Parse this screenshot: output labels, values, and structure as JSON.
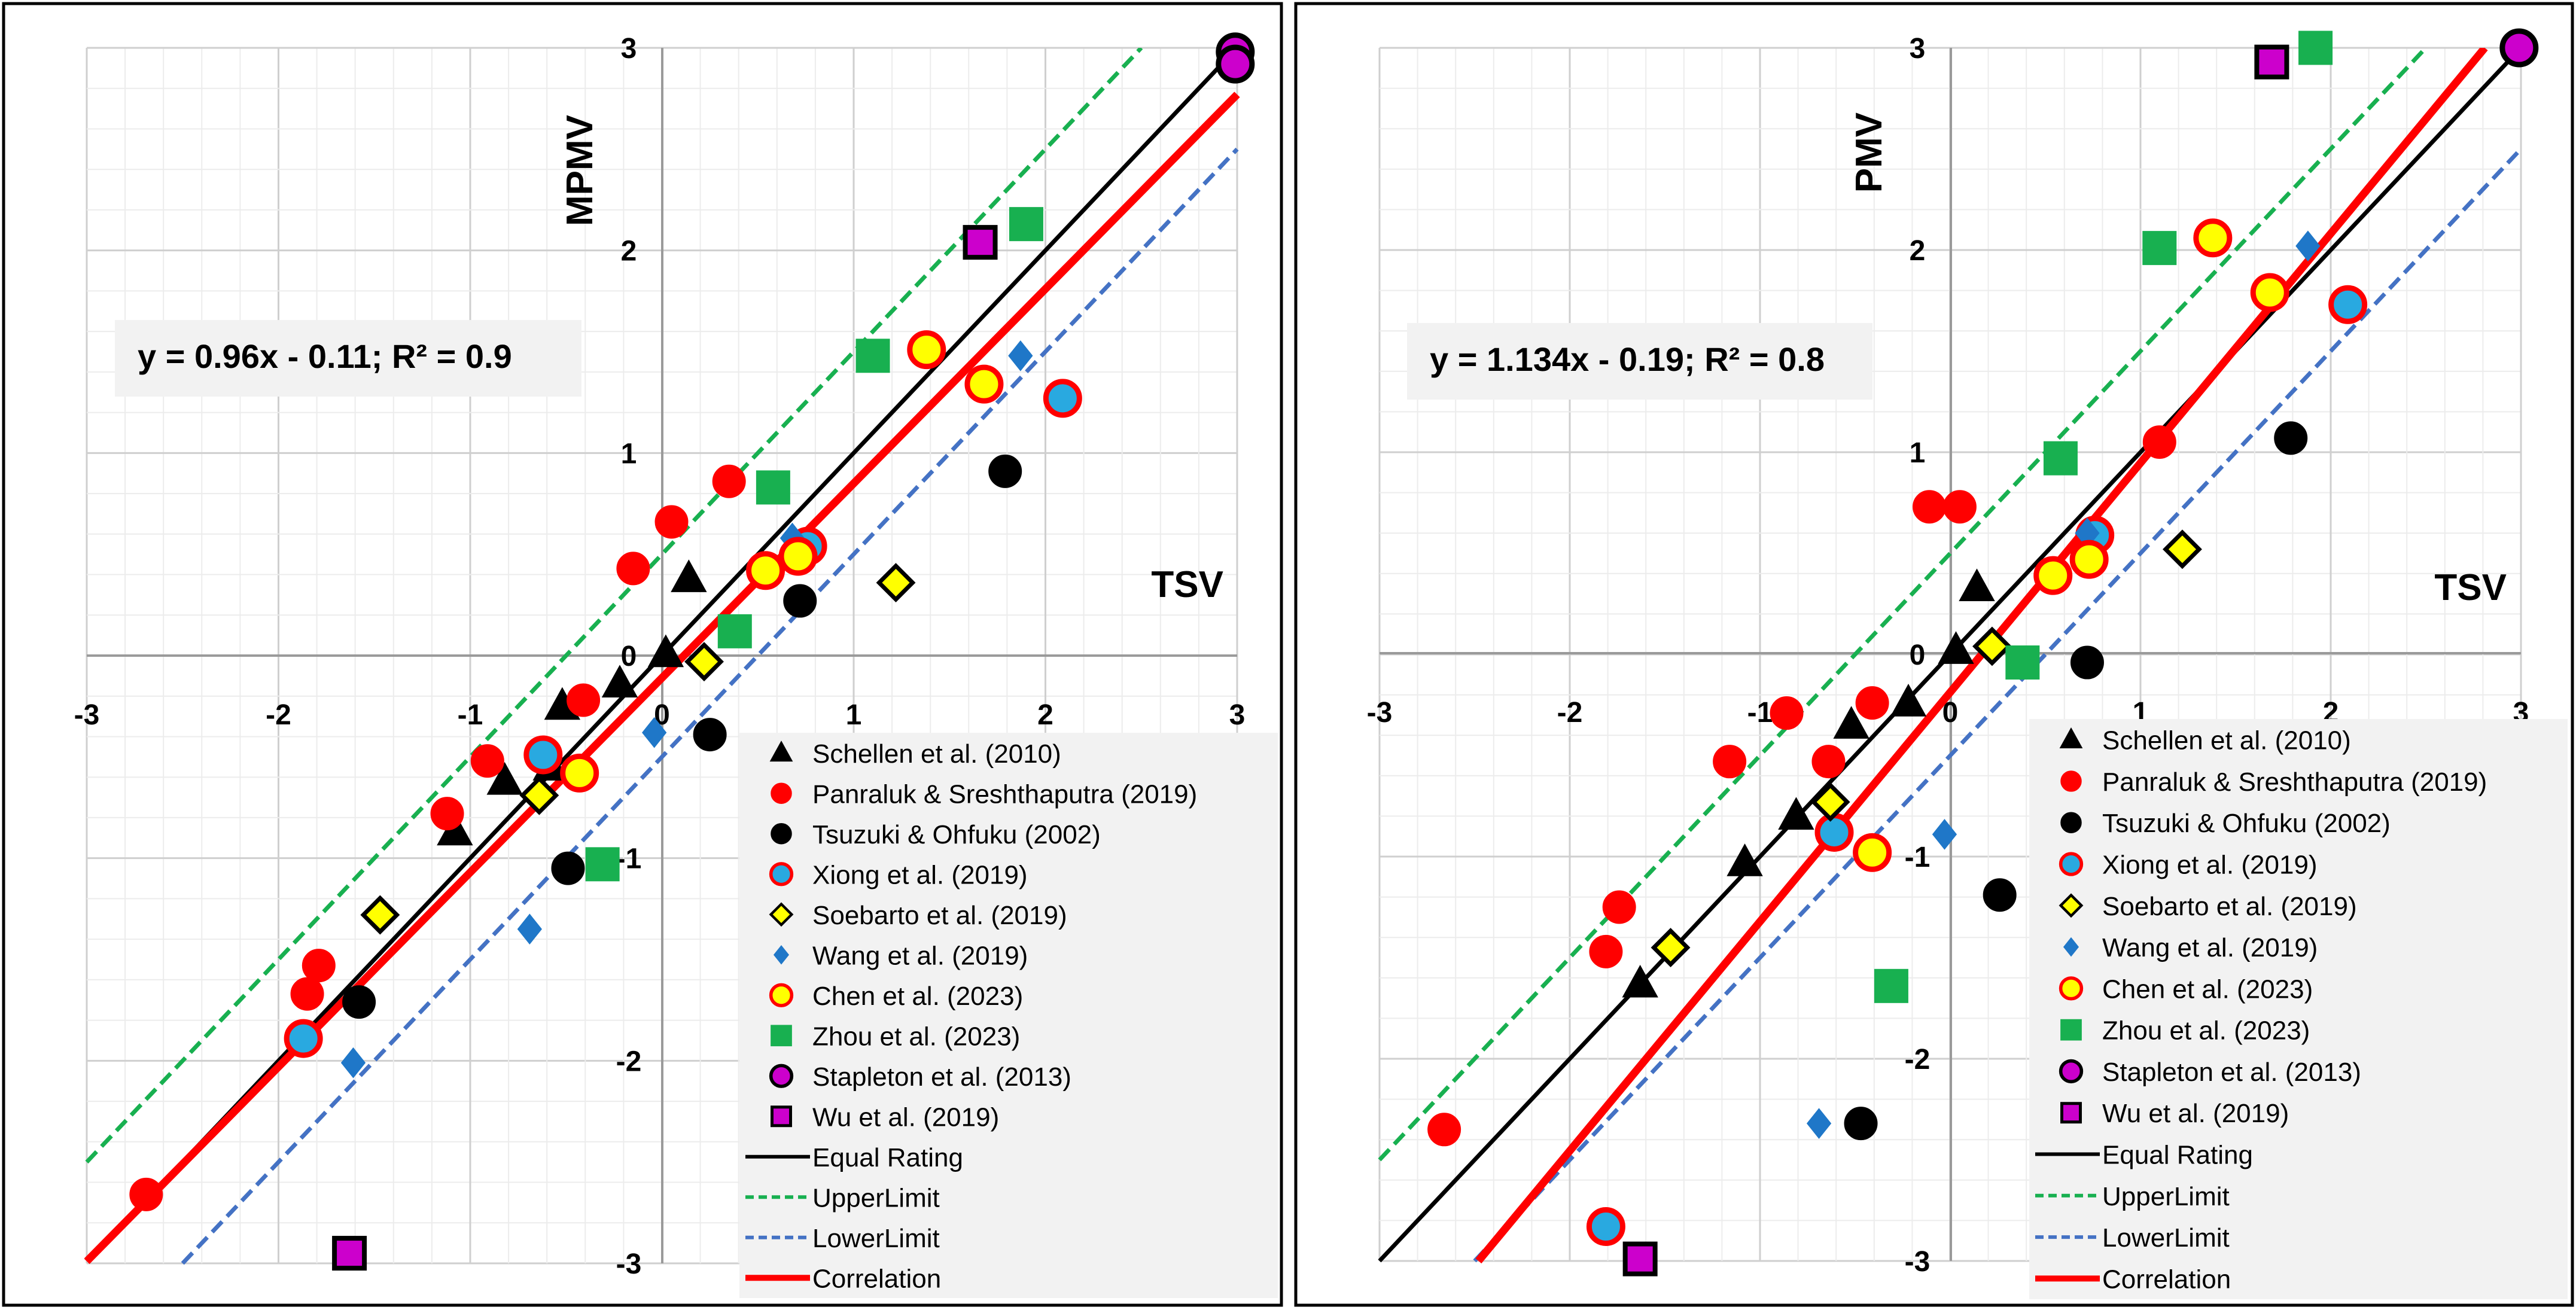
{
  "chart_data": [
    {
      "type": "scatter",
      "title": "",
      "xlabel": "TSV",
      "ylabel": "MPMV",
      "xlim": [
        -3,
        3
      ],
      "ylim": [
        -3,
        3
      ],
      "grid": true,
      "equation": "y = 0.96x - 0.11; R² = 0.9",
      "ticks": {
        "x": [
          "-3",
          "-2",
          "-1",
          "0",
          "1",
          "2",
          "3"
        ],
        "y": [
          "-3",
          "-2",
          "-1",
          "0",
          "1",
          "2",
          "3"
        ]
      },
      "series": [
        {
          "name": "Schellen et al. (2010)",
          "marker": "triangle",
          "fill": "#000000",
          "stroke": "#000000",
          "points": [
            [
              0.14,
              0.38
            ],
            [
              0.02,
              0.01
            ],
            [
              -0.22,
              -0.14
            ],
            [
              -0.52,
              -0.25
            ],
            [
              -0.58,
              -0.55
            ],
            [
              -0.82,
              -0.62
            ],
            [
              -1.08,
              -0.87
            ]
          ]
        },
        {
          "name": "Panraluk & Sreshthaputra (2019)",
          "marker": "circle",
          "fill": "#ff0000",
          "stroke": "#ff0000",
          "points": [
            [
              0.35,
              0.86
            ],
            [
              0.05,
              0.66
            ],
            [
              -0.15,
              0.43
            ],
            [
              -0.41,
              -0.22
            ],
            [
              -0.91,
              -0.52
            ],
            [
              -1.12,
              -0.78
            ],
            [
              -1.79,
              -1.53
            ],
            [
              -1.85,
              -1.67
            ],
            [
              -2.69,
              -2.66
            ]
          ]
        },
        {
          "name": "Tsuzuki & Ohfuku (2002)",
          "marker": "circle",
          "fill": "#000000",
          "stroke": "#000000",
          "points": [
            [
              1.79,
              0.91
            ],
            [
              0.72,
              0.27
            ],
            [
              0.25,
              -0.39
            ],
            [
              -0.49,
              -1.05
            ],
            [
              -1.58,
              -1.71
            ]
          ]
        },
        {
          "name": "Xiong et al. (2019)",
          "marker": "circle",
          "fill": "#29a9e0",
          "stroke": "#ff0000",
          "points": [
            [
              2.09,
              1.27
            ],
            [
              0.76,
              0.54
            ],
            [
              -0.62,
              -0.49
            ],
            [
              -1.87,
              -1.89
            ]
          ]
        },
        {
          "name": "Soebarto et al. (2019)",
          "marker": "diamond",
          "fill": "#ffff00",
          "stroke": "#000000",
          "points": [
            [
              1.22,
              0.36
            ],
            [
              0.22,
              -0.03
            ],
            [
              -0.64,
              -0.69
            ],
            [
              -1.47,
              -1.28
            ]
          ]
        },
        {
          "name": "Wang et al. (2019)",
          "marker": "diamond-small",
          "fill": "#1f77c8",
          "stroke": "#1f77c8",
          "points": [
            [
              1.87,
              1.48
            ],
            [
              0.68,
              0.58
            ],
            [
              -0.04,
              -0.38
            ],
            [
              -0.69,
              -1.35
            ],
            [
              -1.61,
              -2.01
            ]
          ]
        },
        {
          "name": "Chen et al. (2023)",
          "marker": "circle",
          "fill": "#ffff00",
          "stroke": "#ff0000",
          "points": [
            [
              1.38,
              1.51
            ],
            [
              1.68,
              1.34
            ],
            [
              0.71,
              0.49
            ],
            [
              0.54,
              0.42
            ],
            [
              -0.43,
              -0.58
            ]
          ]
        },
        {
          "name": "Zhou et al. (2023)",
          "marker": "square",
          "fill": "#18b050",
          "stroke": "#18b050",
          "points": [
            [
              1.9,
              2.13
            ],
            [
              1.1,
              1.48
            ],
            [
              0.58,
              0.83
            ],
            [
              0.38,
              0.12
            ],
            [
              -0.31,
              -1.03
            ]
          ]
        },
        {
          "name": "Stapleton et al. (2013)",
          "marker": "circle",
          "fill": "#cc00cc",
          "stroke": "#000000",
          "points": [
            [
              2.99,
              2.98
            ],
            [
              2.99,
              2.92
            ]
          ]
        },
        {
          "name": "Wu et al. (2019)",
          "marker": "square-outline",
          "fill": "#cc00cc",
          "stroke": "#000000",
          "points": [
            [
              1.66,
              2.04
            ],
            [
              -1.63,
              -2.95
            ]
          ]
        }
      ],
      "lines": [
        {
          "name": "Equal Rating",
          "color": "#000000",
          "dash": "solid",
          "points": [
            [
              -2.5,
              -2.5
            ],
            [
              3,
              3
            ]
          ]
        },
        {
          "name": "UpperLimit",
          "color": "#18b050",
          "dash": "dashed",
          "points": [
            [
              -3,
              -2.5
            ],
            [
              2.5,
              3
            ]
          ]
        },
        {
          "name": "LowerLimit",
          "color": "#4472c4",
          "dash": "dashed",
          "points": [
            [
              -2.5,
              -3
            ],
            [
              3,
              2.5
            ]
          ]
        },
        {
          "name": "Correlation",
          "color": "#ff0000",
          "dash": "solid",
          "points": [
            [
              -3,
              -2.99
            ],
            [
              3,
              2.77
            ]
          ]
        }
      ]
    },
    {
      "type": "scatter",
      "title": "",
      "xlabel": "TSV",
      "ylabel": "PMV",
      "xlim": [
        -3,
        3
      ],
      "ylim": [
        -3,
        3
      ],
      "grid": true,
      "equation": "y = 1.134x - 0.19; R² = 0.8",
      "ticks": {
        "x": [
          "-3",
          "-2",
          "-1",
          "0",
          "1",
          "2",
          "3"
        ],
        "y": [
          "-3",
          "-2",
          "-1",
          "0",
          "1",
          "2",
          "3"
        ]
      },
      "series": [
        {
          "name": "Schellen et al. (2010)",
          "marker": "triangle",
          "fill": "#000000",
          "stroke": "#000000",
          "points": [
            [
              0.14,
              0.33
            ],
            [
              0.03,
              0.02
            ],
            [
              -0.22,
              -0.24
            ],
            [
              -0.52,
              -0.35
            ],
            [
              -0.81,
              -0.8
            ],
            [
              -1.08,
              -1.03
            ],
            [
              -1.63,
              -1.63
            ]
          ]
        },
        {
          "name": "Panraluk & Sreshthaputra (2019)",
          "marker": "circle",
          "fill": "#ff0000",
          "stroke": "#ff0000",
          "points": [
            [
              1.1,
              1.05
            ],
            [
              0.05,
              0.73
            ],
            [
              -0.11,
              0.73
            ],
            [
              -0.41,
              -0.24
            ],
            [
              -0.64,
              -0.53
            ],
            [
              -0.86,
              -0.29
            ],
            [
              -1.16,
              -0.53
            ],
            [
              -1.74,
              -1.25
            ],
            [
              -1.81,
              -1.47
            ],
            [
              -2.66,
              -2.35
            ]
          ]
        },
        {
          "name": "Tsuzuki & Ohfuku (2002)",
          "marker": "circle",
          "fill": "#000000",
          "stroke": "#000000",
          "points": [
            [
              1.79,
              1.07
            ],
            [
              0.72,
              -0.04
            ],
            [
              0.26,
              -1.19
            ],
            [
              -0.47,
              -2.32
            ]
          ]
        },
        {
          "name": "Xiong et al. (2019)",
          "marker": "circle",
          "fill": "#29a9e0",
          "stroke": "#ff0000",
          "points": [
            [
              2.09,
              1.73
            ],
            [
              0.76,
              0.59
            ],
            [
              -0.61,
              -0.88
            ],
            [
              -1.81,
              -2.83
            ]
          ]
        },
        {
          "name": "Soebarto et al. (2019)",
          "marker": "diamond",
          "fill": "#ffff00",
          "stroke": "#000000",
          "points": [
            [
              1.22,
              0.52
            ],
            [
              0.22,
              0.04
            ],
            [
              -0.63,
              -0.73
            ],
            [
              -1.47,
              -1.45
            ]
          ]
        },
        {
          "name": "Wang et al. (2019)",
          "marker": "diamond-small",
          "fill": "#1f77c8",
          "stroke": "#1f77c8",
          "points": [
            [
              1.88,
              2.02
            ],
            [
              0.72,
              0.6
            ],
            [
              -0.03,
              -0.89
            ],
            [
              -0.69,
              -2.32
            ]
          ]
        },
        {
          "name": "Chen et al. (2023)",
          "marker": "circle",
          "fill": "#ffff00",
          "stroke": "#ff0000",
          "points": [
            [
              1.38,
              2.06
            ],
            [
              1.68,
              1.79
            ],
            [
              0.73,
              0.47
            ],
            [
              0.54,
              0.39
            ],
            [
              -0.41,
              -0.98
            ]
          ]
        },
        {
          "name": "Zhou et al. (2023)",
          "marker": "square",
          "fill": "#18b050",
          "stroke": "#18b050",
          "points": [
            [
              1.92,
              3.0
            ],
            [
              1.1,
              2.01
            ],
            [
              0.58,
              0.97
            ],
            [
              0.38,
              -0.04
            ],
            [
              -0.31,
              -1.64
            ]
          ]
        },
        {
          "name": "Stapleton et al. (2013)",
          "marker": "circle",
          "fill": "#cc00cc",
          "stroke": "#000000",
          "points": [
            [
              2.99,
              3.0
            ]
          ]
        },
        {
          "name": "Wu et al. (2019)",
          "marker": "square-outline",
          "fill": "#cc00cc",
          "stroke": "#000000",
          "points": [
            [
              1.69,
              2.93
            ],
            [
              -1.63,
              -2.99
            ]
          ]
        }
      ],
      "lines": [
        {
          "name": "Equal Rating",
          "color": "#000000",
          "dash": "solid",
          "points": [
            [
              -3,
              -3
            ],
            [
              3,
              3
            ]
          ]
        },
        {
          "name": "UpperLimit",
          "color": "#18b050",
          "dash": "dashed",
          "points": [
            [
              -3,
              -2.5
            ],
            [
              2.5,
              3
            ]
          ]
        },
        {
          "name": "LowerLimit",
          "color": "#4472c4",
          "dash": "dashed",
          "points": [
            [
              -2.5,
              -3
            ],
            [
              3,
              2.5
            ]
          ]
        },
        {
          "name": "Correlation",
          "color": "#ff0000",
          "dash": "solid",
          "points": [
            [
              -2.48,
              -3
            ],
            [
              2.81,
              3
            ]
          ]
        }
      ]
    }
  ]
}
